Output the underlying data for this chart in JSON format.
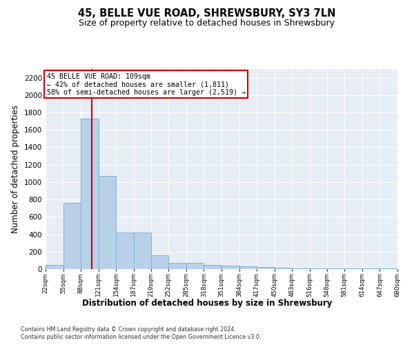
{
  "title": "45, BELLE VUE ROAD, SHREWSBURY, SY3 7LN",
  "subtitle": "Size of property relative to detached houses in Shrewsbury",
  "xlabel": "Distribution of detached houses by size in Shrewsbury",
  "ylabel": "Number of detached properties",
  "footnote1": "Contains HM Land Registry data © Crown copyright and database right 2024.",
  "footnote2": "Contains public sector information licensed under the Open Government Licence v3.0.",
  "bin_edges": [
    22,
    55,
    88,
    121,
    154,
    187,
    219,
    252,
    285,
    318,
    351,
    384,
    417,
    450,
    483,
    516,
    548,
    581,
    614,
    647,
    680
  ],
  "bar_values": [
    50,
    760,
    1730,
    1070,
    420,
    420,
    160,
    75,
    75,
    45,
    40,
    30,
    20,
    15,
    10,
    5,
    5,
    5,
    5,
    5
  ],
  "bar_color": "#b8d0e8",
  "bar_edgecolor": "#7aafd4",
  "background_color": "#e8eef5",
  "property_size": 109,
  "property_line_color": "#cc0000",
  "annotation_line1": "45 BELLE VUE ROAD: 109sqm",
  "annotation_line2": "← 42% of detached houses are smaller (1,811)",
  "annotation_line3": "58% of semi-detached houses are larger (2,519) →",
  "annotation_box_color": "#cc0000",
  "annotation_text_color": "#000000",
  "ylim": [
    0,
    2300
  ],
  "yticks": [
    0,
    200,
    400,
    600,
    800,
    1000,
    1200,
    1400,
    1600,
    1800,
    2000,
    2200
  ],
  "grid_color": "#ffffff",
  "title_fontsize": 10.5,
  "subtitle_fontsize": 9,
  "xlabel_fontsize": 8.5,
  "ylabel_fontsize": 8.5,
  "footnote_fontsize": 5.8
}
